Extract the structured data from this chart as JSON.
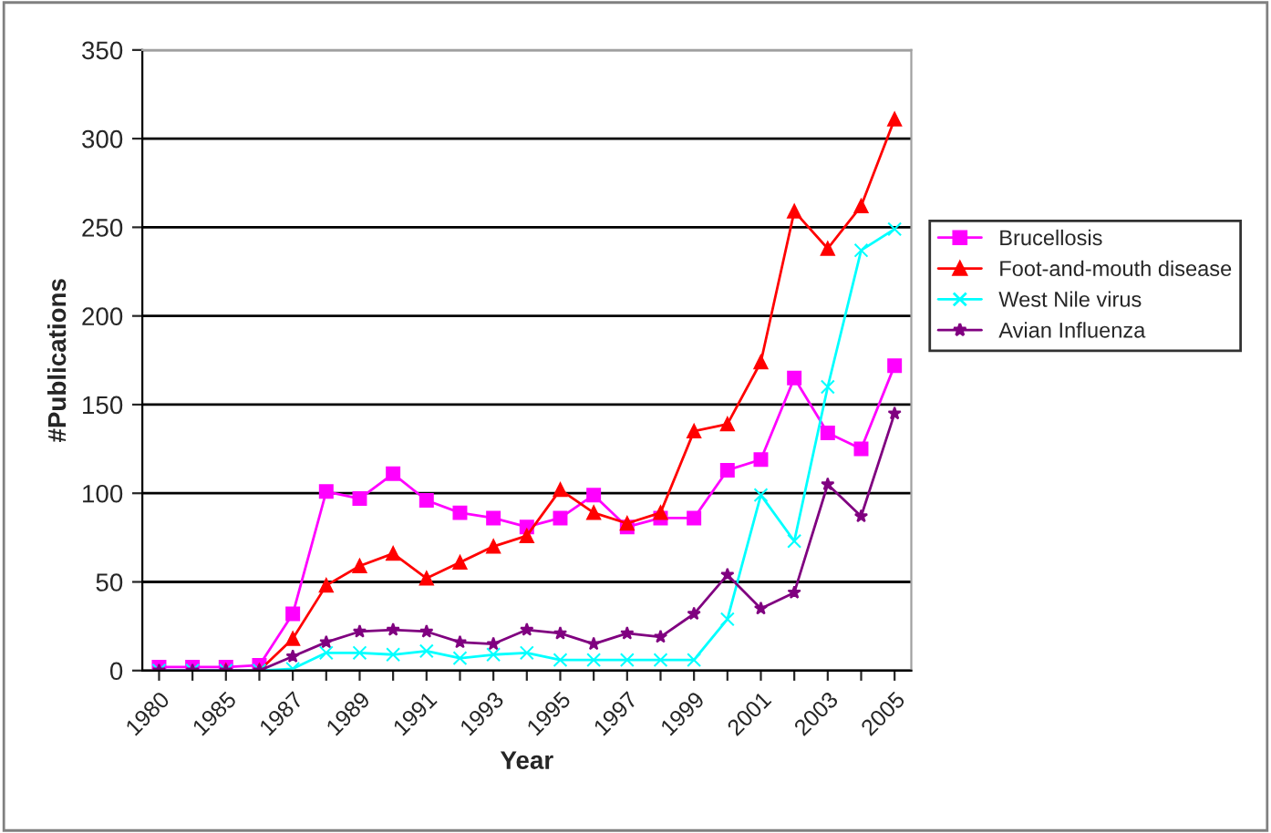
{
  "chart_data": {
    "type": "line",
    "xlabel": "Year",
    "ylabel": "#Publications",
    "categories": [
      "1980",
      null,
      "1985",
      null,
      "1987",
      null,
      "1989",
      null,
      "1991",
      null,
      "1993",
      null,
      "1995",
      null,
      "1997",
      null,
      "1999",
      null,
      "2001",
      null,
      "2003",
      null,
      "2005"
    ],
    "series": [
      {
        "name": "Brucellosis",
        "color": "#ff00ff",
        "marker": "square",
        "values": [
          2,
          2,
          2,
          3,
          32,
          101,
          97,
          111,
          96,
          89,
          86,
          81,
          86,
          99,
          81,
          86,
          86,
          113,
          119,
          165,
          134,
          125,
          172
        ]
      },
      {
        "name": "Foot-and-mouth disease",
        "color": "#ff0000",
        "marker": "triangle",
        "values": [
          null,
          null,
          0,
          0,
          18,
          48,
          59,
          66,
          52,
          61,
          70,
          76,
          102,
          89,
          83,
          89,
          135,
          139,
          174,
          259,
          238,
          262,
          311
        ]
      },
      {
        "name": "West Nile virus",
        "color": "#00ffff",
        "marker": "cross",
        "values": [
          0,
          0,
          0,
          0,
          1,
          10,
          10,
          9,
          11,
          7,
          9,
          10,
          6,
          6,
          6,
          6,
          6,
          29,
          99,
          73,
          160,
          237,
          249
        ]
      },
      {
        "name": "Avian Influenza",
        "color": "#800080",
        "marker": "star",
        "values": [
          0,
          0,
          0,
          0,
          8,
          16,
          22,
          23,
          22,
          16,
          15,
          23,
          21,
          15,
          21,
          19,
          32,
          54,
          35,
          44,
          105,
          87,
          145
        ]
      }
    ],
    "ylim": [
      0,
      350
    ],
    "yticks": [
      0,
      50,
      100,
      150,
      200,
      250,
      300,
      350
    ],
    "grid": "y",
    "legend": "right"
  }
}
